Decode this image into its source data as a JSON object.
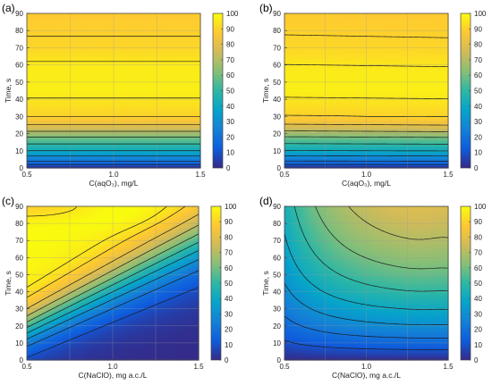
{
  "colors": {
    "colormap": [
      "#352a87",
      "#0f5cdd",
      "#1481d6",
      "#06a4ca",
      "#2eb7a4",
      "#87bf77",
      "#d1bb59",
      "#fec832",
      "#f9fb0e"
    ],
    "contour_line": "#1a1a1a"
  },
  "chart_data": [
    {
      "type": "heatmap",
      "panel_label": "(a)",
      "xlabel": "C(aqO₃), mg/L",
      "ylabel": "Time, s",
      "xlim": [
        0.5,
        1.5
      ],
      "ylim": [
        0,
        90
      ],
      "xticks": [
        "0.5",
        "1.0",
        "1.5"
      ],
      "yticks": [
        "0",
        "10",
        "20",
        "30",
        "40",
        "50",
        "60",
        "70",
        "80",
        "90"
      ],
      "colorbar": {
        "range": [
          0,
          100
        ],
        "ticks": [
          "0",
          "10",
          "20",
          "30",
          "40",
          "50",
          "60",
          "70",
          "80",
          "90",
          "100"
        ]
      },
      "contour_levels": [
        10,
        20,
        30,
        40,
        50,
        60,
        70,
        80,
        90,
        95
      ],
      "profile": {
        "t": [
          0,
          1,
          2,
          4,
          7,
          10,
          14,
          18,
          22,
          26,
          30,
          45,
          60,
          70,
          90
        ],
        "v": [
          0,
          5,
          10,
          20,
          30,
          40,
          50,
          60,
          72,
          82,
          90,
          97,
          96,
          91,
          88
        ]
      },
      "tilt": [
        0,
        0
      ]
    },
    {
      "type": "heatmap",
      "panel_label": "(b)",
      "xlabel": "C(aqO₃), mg/L",
      "ylabel": "Time, s",
      "xlim": [
        0.5,
        1.5
      ],
      "ylim": [
        0,
        90
      ],
      "xticks": [
        "0.5",
        "1.0",
        "1.5"
      ],
      "yticks": [
        "0",
        "10",
        "20",
        "30",
        "40",
        "50",
        "60",
        "70",
        "80",
        "90"
      ],
      "colorbar": {
        "range": [
          0,
          100
        ],
        "ticks": [
          "0",
          "10",
          "20",
          "30",
          "40",
          "50",
          "60",
          "70",
          "80",
          "90",
          "100"
        ]
      },
      "contour_levels": [
        10,
        20,
        30,
        40,
        50,
        60,
        70,
        80,
        90,
        95
      ],
      "profile": {
        "t": [
          0,
          1,
          2,
          4,
          7,
          10,
          14,
          18,
          22,
          26,
          30,
          45,
          57,
          70,
          90
        ],
        "v": [
          0,
          5,
          10,
          20,
          30,
          40,
          50,
          60,
          72,
          82,
          90,
          97,
          96,
          91,
          88
        ]
      },
      "tilt": [
        -1,
        1
      ]
    },
    {
      "type": "heatmap",
      "panel_label": "(c)",
      "xlabel": "C(NaClO), mg a.c./L",
      "ylabel": "Time, s",
      "xlim": [
        0.5,
        1.5
      ],
      "ylim": [
        0,
        90
      ],
      "xticks": [
        "0.5",
        "1.0",
        "1.5"
      ],
      "yticks": [
        "0",
        "10",
        "20",
        "30",
        "40",
        "50",
        "60",
        "70",
        "80",
        "90"
      ],
      "colorbar": {
        "range": [
          0,
          100
        ],
        "ticks": [
          "0",
          "10",
          "20",
          "30",
          "40",
          "50",
          "60",
          "70",
          "80",
          "90",
          "100"
        ]
      },
      "contour_levels": [
        10,
        20,
        30,
        40,
        50,
        60,
        70,
        80,
        90,
        95
      ]
    },
    {
      "type": "heatmap",
      "panel_label": "(d)",
      "xlabel": "C(NaClO), mg a.c./L",
      "ylabel": "Time, s",
      "xlim": [
        0.5,
        1.5
      ],
      "ylim": [
        0,
        90
      ],
      "xticks": [
        "0.5",
        "1.0",
        "1.5"
      ],
      "yticks": [
        "0",
        "10",
        "20",
        "30",
        "40",
        "50",
        "60",
        "70",
        "80",
        "90"
      ],
      "colorbar": {
        "range": [
          0,
          100
        ],
        "ticks": [
          "0",
          "10",
          "20",
          "30",
          "40",
          "50",
          "60",
          "70",
          "80",
          "90",
          "100"
        ]
      },
      "contour_levels": [
        10,
        20,
        30,
        40,
        50,
        60,
        70,
        80,
        90,
        95
      ]
    }
  ]
}
